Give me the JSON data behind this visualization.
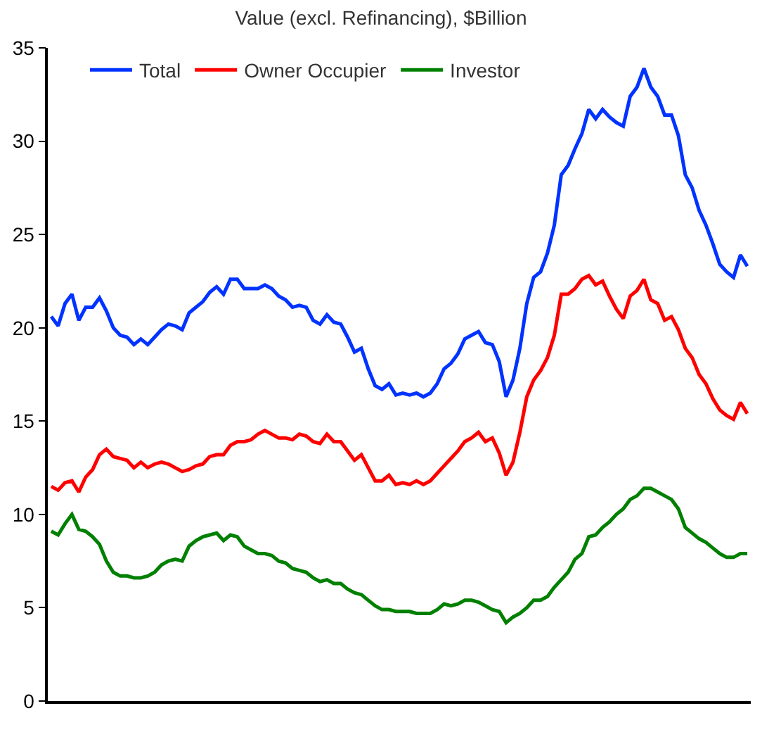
{
  "chart_data": {
    "type": "line",
    "title": "Value (excl. Refinancing), $Billion",
    "categories": [
      null,
      null,
      null,
      null,
      null,
      null,
      null,
      null,
      null,
      null,
      null,
      null,
      null,
      null,
      null,
      null,
      null,
      null,
      null,
      null,
      null,
      null,
      null,
      null,
      null,
      null,
      null,
      null,
      null,
      null,
      null,
      null,
      null,
      null,
      null,
      null,
      null,
      null,
      null,
      null,
      null,
      null,
      null,
      null,
      null,
      null,
      null,
      null,
      null,
      null,
      null,
      null,
      null,
      null,
      null,
      null,
      null,
      null,
      null,
      null,
      null,
      null,
      null,
      null,
      null,
      null,
      null,
      null,
      null,
      null,
      null,
      null,
      null,
      null,
      null,
      null,
      null,
      null,
      null,
      null,
      null,
      null,
      null,
      null,
      null,
      null,
      null,
      null,
      null,
      null,
      null,
      null,
      null,
      null,
      null,
      null,
      null,
      null,
      null,
      null,
      null,
      null
    ],
    "series": [
      {
        "name": "Total",
        "color": "#0033ff",
        "values": [
          20.6,
          20.1,
          21.3,
          21.8,
          20.4,
          21.1,
          21.1,
          21.6,
          20.9,
          20.0,
          19.6,
          19.5,
          19.1,
          19.4,
          19.1,
          19.5,
          19.9,
          20.2,
          20.1,
          19.9,
          20.8,
          21.1,
          21.4,
          21.9,
          22.2,
          21.8,
          22.6,
          22.6,
          22.1,
          22.1,
          22.1,
          22.3,
          22.1,
          21.7,
          21.5,
          21.1,
          21.2,
          21.1,
          20.4,
          20.2,
          20.7,
          20.3,
          20.2,
          19.5,
          18.7,
          18.9,
          17.8,
          16.9,
          16.7,
          17.0,
          16.4,
          16.5,
          16.4,
          16.5,
          16.3,
          16.5,
          17.0,
          17.8,
          18.1,
          18.6,
          19.4,
          19.6,
          19.8,
          19.2,
          19.1,
          18.2,
          16.3,
          17.2,
          18.9,
          21.3,
          22.7,
          23.0,
          24.0,
          25.5,
          28.2,
          28.7,
          29.6,
          30.4,
          31.7,
          31.2,
          31.7,
          31.3,
          31.0,
          30.8,
          32.4,
          32.9,
          33.9,
          32.9,
          32.4,
          31.4,
          31.4,
          30.3,
          28.2,
          27.5,
          26.3,
          25.5,
          24.5,
          23.4,
          23.0,
          22.7,
          23.9,
          23.3
        ]
      },
      {
        "name": "Owner Occupier",
        "color": "#ff0000",
        "values": [
          11.5,
          11.3,
          11.7,
          11.8,
          11.2,
          12.0,
          12.4,
          13.2,
          13.5,
          13.1,
          13.0,
          12.9,
          12.5,
          12.8,
          12.5,
          12.7,
          12.8,
          12.7,
          12.5,
          12.3,
          12.4,
          12.6,
          12.7,
          13.1,
          13.2,
          13.2,
          13.7,
          13.9,
          13.9,
          14.0,
          14.3,
          14.5,
          14.3,
          14.1,
          14.1,
          14.0,
          14.3,
          14.2,
          13.9,
          13.8,
          14.3,
          13.9,
          13.9,
          13.4,
          12.9,
          13.2,
          12.5,
          11.8,
          11.8,
          12.1,
          11.6,
          11.7,
          11.6,
          11.8,
          11.6,
          11.8,
          12.2,
          12.6,
          13.0,
          13.4,
          13.9,
          14.1,
          14.4,
          13.9,
          14.1,
          13.3,
          12.1,
          12.8,
          14.4,
          16.3,
          17.2,
          17.7,
          18.4,
          19.6,
          21.8,
          21.8,
          22.1,
          22.6,
          22.8,
          22.3,
          22.5,
          21.7,
          21.0,
          20.5,
          21.7,
          22.0,
          22.6,
          21.5,
          21.3,
          20.4,
          20.6,
          19.9,
          18.9,
          18.4,
          17.5,
          17.0,
          16.2,
          15.6,
          15.3,
          15.1,
          16.0,
          15.4
        ]
      },
      {
        "name": "Investor",
        "color": "#008000",
        "values": [
          9.1,
          8.9,
          9.5,
          10.0,
          9.2,
          9.1,
          8.8,
          8.4,
          7.5,
          6.9,
          6.7,
          6.7,
          6.6,
          6.6,
          6.7,
          6.9,
          7.3,
          7.5,
          7.6,
          7.5,
          8.3,
          8.6,
          8.8,
          8.9,
          9.0,
          8.6,
          8.9,
          8.8,
          8.3,
          8.1,
          7.9,
          7.9,
          7.8,
          7.5,
          7.4,
          7.1,
          7.0,
          6.9,
          6.6,
          6.4,
          6.5,
          6.3,
          6.3,
          6.0,
          5.8,
          5.7,
          5.4,
          5.1,
          4.9,
          4.9,
          4.8,
          4.8,
          4.8,
          4.7,
          4.7,
          4.7,
          4.9,
          5.2,
          5.1,
          5.2,
          5.4,
          5.4,
          5.3,
          5.1,
          4.9,
          4.8,
          4.2,
          4.5,
          4.7,
          5.0,
          5.4,
          5.4,
          5.6,
          6.1,
          6.5,
          6.9,
          7.6,
          7.9,
          8.8,
          8.9,
          9.3,
          9.6,
          10.0,
          10.3,
          10.8,
          11.0,
          11.4,
          11.4,
          11.2,
          11.0,
          10.8,
          10.3,
          9.3,
          9.0,
          8.7,
          8.5,
          8.2,
          7.9,
          7.7,
          7.7,
          7.9,
          7.9
        ]
      }
    ],
    "ylim": [
      0,
      35
    ],
    "yticks": [
      0,
      5,
      10,
      15,
      20,
      25,
      30,
      35
    ],
    "tick_labels": "y",
    "legend": "top left",
    "marker": "none",
    "line_style": "solid"
  }
}
